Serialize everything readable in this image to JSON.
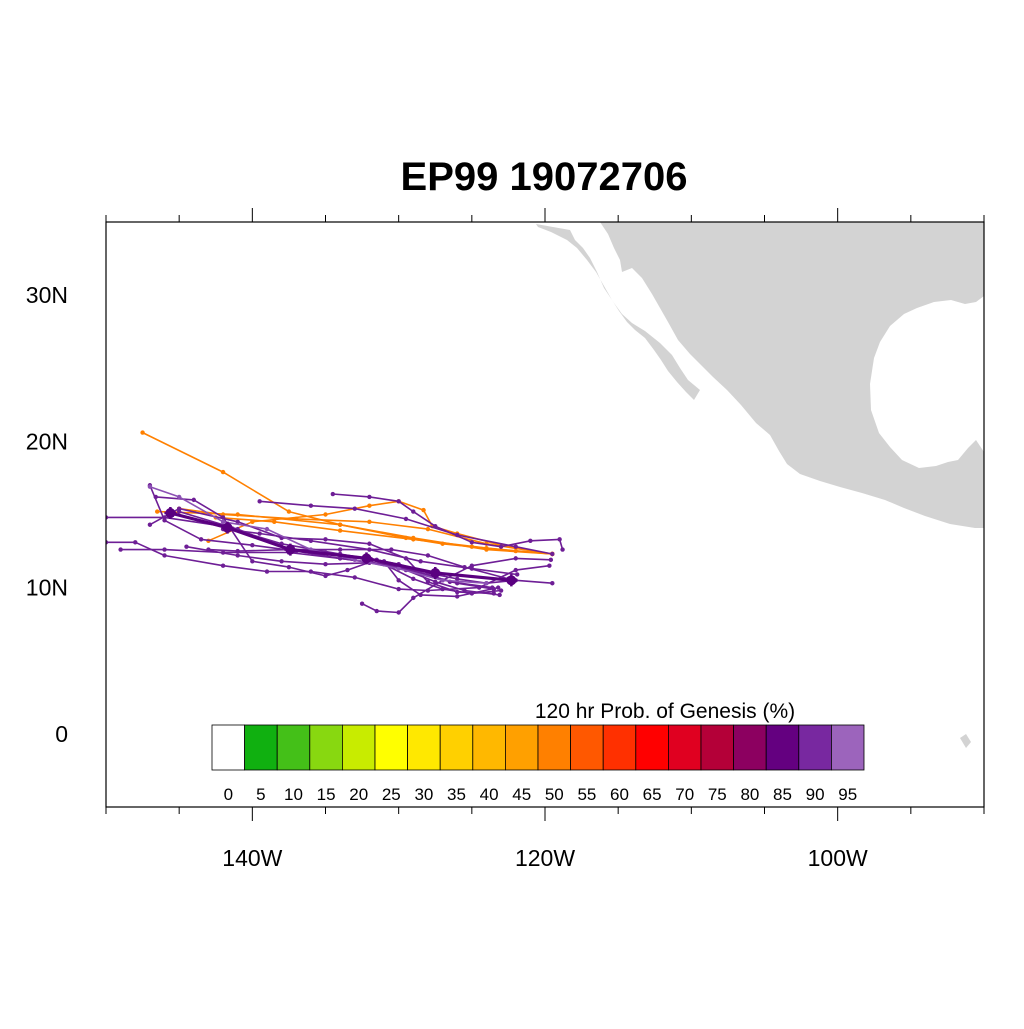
{
  "title": "EP99 19072706",
  "map": {
    "lon_range": [
      -150,
      -90
    ],
    "lat_range": [
      -5,
      35
    ],
    "land_color": "#d3d3d3",
    "ocean_color": "#ffffff",
    "lat_labels": [
      {
        "value": 30,
        "text": "30N"
      },
      {
        "value": 20,
        "text": "20N"
      },
      {
        "value": 10,
        "text": "10N"
      },
      {
        "value": 0,
        "text": "0"
      }
    ],
    "lon_labels": [
      {
        "value": -140,
        "text": "140W"
      },
      {
        "value": -120,
        "text": "120W"
      },
      {
        "value": -100,
        "text": "100W"
      }
    ]
  },
  "colorbar": {
    "title": "120 hr Prob. of Genesis (%)",
    "labels": [
      "0",
      "5",
      "10",
      "15",
      "20",
      "25",
      "30",
      "35",
      "40",
      "45",
      "50",
      "55",
      "60",
      "65",
      "70",
      "75",
      "80",
      "85",
      "90",
      "95"
    ],
    "colors": [
      "#ffffff",
      "#10b010",
      "#44c018",
      "#88d810",
      "#c8ec00",
      "#ffff00",
      "#ffe800",
      "#ffd000",
      "#ffb800",
      "#ffa000",
      "#ff8000",
      "#ff5800",
      "#ff3000",
      "#ff0000",
      "#e00020",
      "#b40038",
      "#8c0060",
      "#640080",
      "#7828a0",
      "#9c64bc"
    ]
  },
  "tracks": [
    {
      "color": "#ff8000",
      "points": [
        [
          -119.5,
          12.3
        ],
        [
          -124,
          12.6
        ],
        [
          -129,
          13.4
        ],
        [
          -134,
          14.3
        ],
        [
          -141,
          15.0
        ],
        [
          -146.5,
          15.2
        ]
      ]
    },
    {
      "color": "#ff8000",
      "points": [
        [
          -119.5,
          12.3
        ],
        [
          -122,
          12.5
        ],
        [
          -125,
          12.8
        ],
        [
          -127,
          13.0
        ],
        [
          -129.5,
          13.4
        ],
        [
          -134,
          14.3
        ],
        [
          -137.5,
          15.2
        ],
        [
          -142,
          17.9
        ],
        [
          -147.5,
          20.6
        ]
      ]
    },
    {
      "color": "#ff8000",
      "points": [
        [
          -119.5,
          12.3
        ],
        [
          -123,
          12.9
        ],
        [
          -126,
          13.7
        ],
        [
          -127.7,
          14.2
        ],
        [
          -128.3,
          15.3
        ],
        [
          -130,
          15.9
        ],
        [
          -132,
          15.6
        ],
        [
          -135,
          15.0
        ],
        [
          -140,
          14.5
        ],
        [
          -143,
          13.2
        ]
      ]
    },
    {
      "color": "#ff8000",
      "points": [
        [
          -119.5,
          12.3
        ],
        [
          -124,
          13.0
        ],
        [
          -128,
          14.0
        ],
        [
          -132,
          14.5
        ],
        [
          -137,
          14.7
        ],
        [
          -142,
          15.0
        ],
        [
          -145,
          15.4
        ]
      ]
    },
    {
      "color": "#ff8000",
      "points": [
        [
          -119.5,
          12.3
        ],
        [
          -124,
          12.7
        ],
        [
          -129,
          13.3
        ],
        [
          -134,
          13.9
        ],
        [
          -138.5,
          14.5
        ],
        [
          -142.5,
          14.8
        ]
      ]
    },
    {
      "color": "#6e1e96",
      "points": [
        [
          -119.5,
          10.3
        ],
        [
          -122,
          10.5
        ],
        [
          -124,
          10.3
        ],
        [
          -126,
          10.6
        ],
        [
          -128,
          11.0
        ],
        [
          -130,
          11.6
        ],
        [
          -132,
          12.0
        ],
        [
          -135,
          12.4
        ],
        [
          -137.5,
          12.6
        ],
        [
          -141,
          14.0
        ],
        [
          -145,
          15.2
        ]
      ]
    },
    {
      "color": "#6e1e96",
      "points": [
        [
          -119.5,
          12.3
        ],
        [
          -122,
          12.8
        ],
        [
          -126,
          13.6
        ],
        [
          -129.5,
          14.7
        ],
        [
          -133,
          15.4
        ],
        [
          -136,
          15.6
        ],
        [
          -139.5,
          15.9
        ]
      ]
    },
    {
      "color": "#6e1e96",
      "points": [
        [
          -118.8,
          12.6
        ],
        [
          -119.0,
          13.3
        ],
        [
          -121,
          13.2
        ],
        [
          -123,
          12.8
        ],
        [
          -125,
          13.1
        ],
        [
          -127.5,
          14.2
        ],
        [
          -129,
          15.2
        ],
        [
          -130,
          15.9
        ],
        [
          -132,
          16.2
        ],
        [
          -134.5,
          16.4
        ]
      ]
    },
    {
      "color": "#6e1e96",
      "points": [
        [
          -119.7,
          11.5
        ],
        [
          -122,
          11.2
        ],
        [
          -124.5,
          10.0
        ],
        [
          -128,
          9.8
        ],
        [
          -130,
          9.9
        ],
        [
          -133,
          10.7
        ],
        [
          -136,
          11.1
        ],
        [
          -139,
          11.1
        ],
        [
          -142,
          11.5
        ],
        [
          -146,
          12.2
        ],
        [
          -148,
          13.1
        ],
        [
          -150,
          13.1
        ]
      ]
    },
    {
      "color": "#6e1e96",
      "points": [
        [
          -119.6,
          11.9
        ],
        [
          -122,
          12.0
        ],
        [
          -125,
          11.5
        ],
        [
          -127,
          10.5
        ],
        [
          -129,
          9.3
        ],
        [
          -130,
          8.3
        ],
        [
          -131.5,
          8.4
        ],
        [
          -132.5,
          8.9
        ]
      ]
    },
    {
      "color": "#6e1e96",
      "points": [
        [
          -123.0,
          9.8
        ],
        [
          -125,
          9.6
        ],
        [
          -127,
          9.9
        ],
        [
          -129,
          10.6
        ],
        [
          -131,
          11.6
        ],
        [
          -134,
          12.0
        ],
        [
          -137.5,
          12.4
        ],
        [
          -142,
          12.4
        ],
        [
          -146,
          12.6
        ],
        [
          -149,
          12.6
        ]
      ]
    },
    {
      "color": "#6e1e96",
      "points": [
        [
          -123.2,
          10.0
        ],
        [
          -126,
          9.4
        ],
        [
          -128.5,
          9.5
        ],
        [
          -130,
          10.5
        ],
        [
          -131,
          11.8
        ],
        [
          -134,
          12.3
        ],
        [
          -138,
          13.0
        ],
        [
          -142,
          14.2
        ],
        [
          -146,
          14.8
        ],
        [
          -150,
          14.8
        ]
      ]
    },
    {
      "color": "#6e1e96",
      "points": [
        [
          -123.5,
          9.6
        ],
        [
          -126,
          9.7
        ],
        [
          -128,
          10.4
        ],
        [
          -129.5,
          12.0
        ],
        [
          -132,
          13.0
        ],
        [
          -135,
          13.3
        ],
        [
          -138,
          13.4
        ],
        [
          -141,
          14.5
        ],
        [
          -145,
          15.4
        ],
        [
          -147,
          14.3
        ]
      ]
    },
    {
      "color": "#6e1e96",
      "points": [
        [
          -123.5,
          9.9
        ],
        [
          -126,
          10.3
        ],
        [
          -128.5,
          11.0
        ],
        [
          -131,
          11.6
        ],
        [
          -134,
          12.0
        ],
        [
          -137,
          12.5
        ],
        [
          -140,
          12.9
        ],
        [
          -143.5,
          13.3
        ],
        [
          -146,
          14.6
        ],
        [
          -147.0,
          17.0
        ]
      ]
    },
    {
      "color": "#6e1e96",
      "points": [
        [
          -123.6,
          10.0
        ],
        [
          -126.5,
          10.4
        ],
        [
          -129,
          11.2
        ],
        [
          -132,
          11.7
        ],
        [
          -135,
          11.6
        ],
        [
          -138,
          11.8
        ],
        [
          -141,
          12.2
        ],
        [
          -144.5,
          12.8
        ]
      ]
    },
    {
      "color": "#6e1e96",
      "points": [
        [
          -122.5,
          10.6
        ],
        [
          -125.5,
          11.4
        ],
        [
          -128,
          12.2
        ],
        [
          -130.5,
          12.6
        ],
        [
          -134,
          12.6
        ],
        [
          -137.5,
          12.6
        ],
        [
          -141,
          12.5
        ],
        [
          -143,
          12.6
        ]
      ]
    },
    {
      "color": "#6e1e96",
      "points": [
        [
          -121.9,
          10.9
        ],
        [
          -125,
          11.3
        ],
        [
          -128.5,
          11.8
        ],
        [
          -132,
          12.6
        ],
        [
          -136,
          13.2
        ],
        [
          -139.5,
          13.7
        ],
        [
          -142,
          14.0
        ]
      ]
    },
    {
      "color": "#6e1e96",
      "points": [
        [
          -123.1,
          9.5
        ],
        [
          -125.5,
          9.8
        ],
        [
          -127.5,
          10.4
        ],
        [
          -129.5,
          11.2
        ],
        [
          -131.5,
          11.9
        ],
        [
          -133.5,
          11.2
        ],
        [
          -135,
          10.8
        ],
        [
          -137.5,
          11.4
        ],
        [
          -140,
          11.8
        ],
        [
          -142,
          14.8
        ],
        [
          -144,
          16.0
        ],
        [
          -146.6,
          16.2
        ]
      ]
    },
    {
      "color": "#8c50b4",
      "points": [
        [
          -124,
          10.3
        ],
        [
          -127,
          10.5
        ],
        [
          -130,
          11.3
        ],
        [
          -133,
          11.9
        ],
        [
          -136,
          12.6
        ],
        [
          -139,
          14.0
        ],
        [
          -142,
          14.5
        ],
        [
          -145,
          16.2
        ],
        [
          -147,
          16.9
        ]
      ]
    }
  ],
  "mean_track": {
    "color": "#5a0080",
    "points": [
      [
        -122.3,
        10.5
      ],
      [
        -127.5,
        11.0
      ],
      [
        -132.2,
        12.0
      ],
      [
        -137.4,
        12.6
      ],
      [
        -141.7,
        14.1
      ],
      [
        -145.6,
        15.1
      ]
    ]
  }
}
